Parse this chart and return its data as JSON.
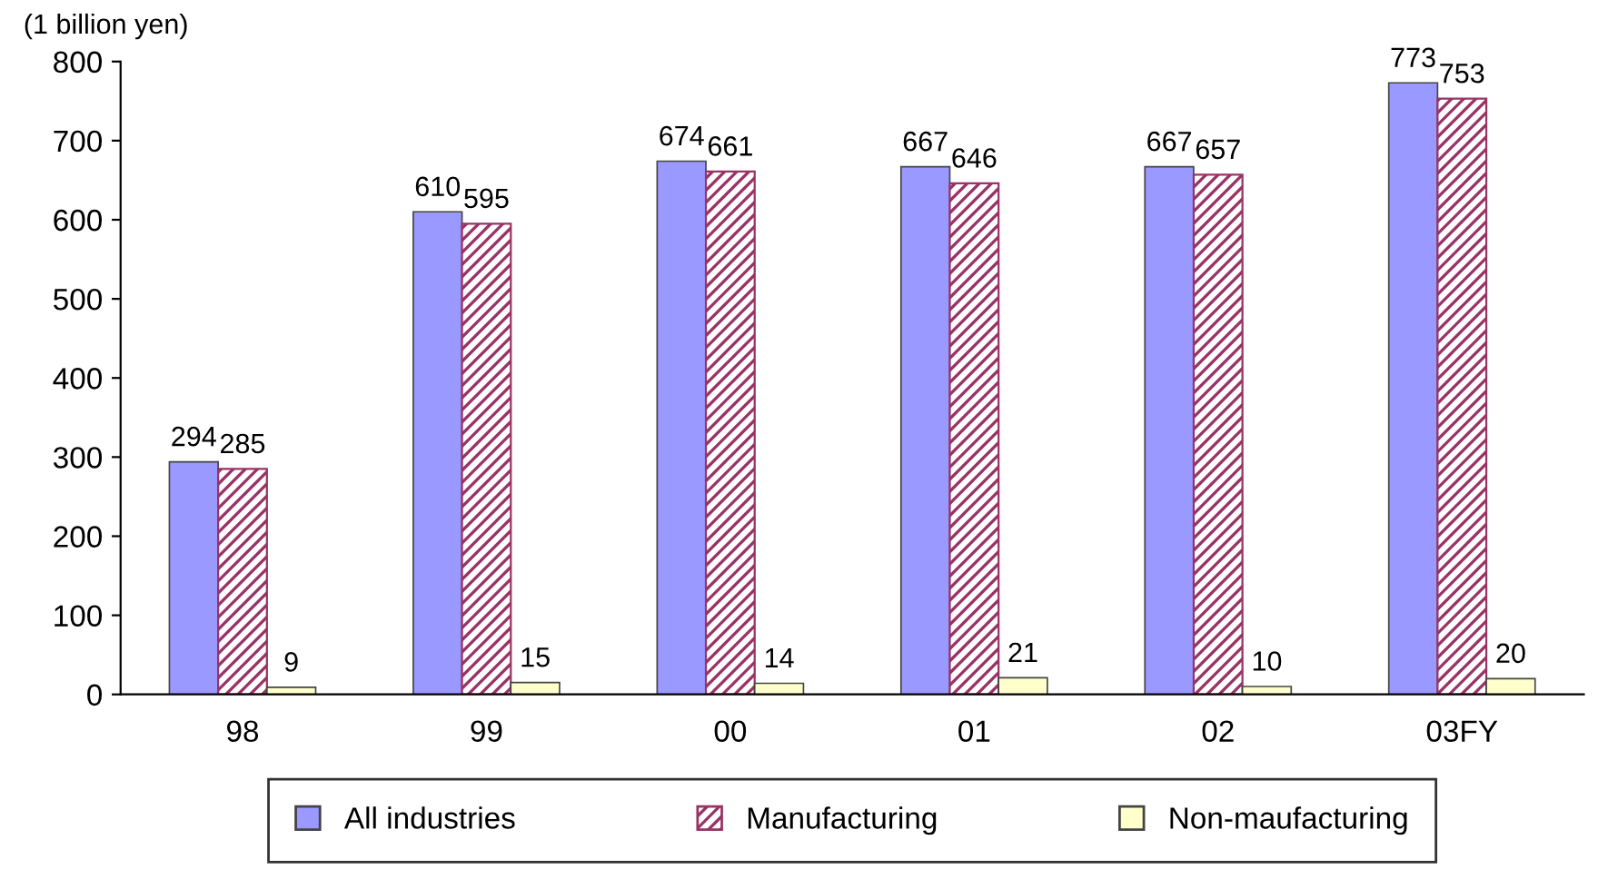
{
  "chart_data": {
    "type": "bar",
    "ylabel": "(1 billion yen)",
    "categories": [
      "98",
      "99",
      "00",
      "01",
      "02",
      "03FY"
    ],
    "series": [
      {
        "name": "All industries",
        "color": "#9999ff",
        "values": [
          294,
          610,
          674,
          667,
          667,
          773
        ]
      },
      {
        "name": "Manufacturing",
        "color": "#993366",
        "values": [
          285,
          595,
          661,
          646,
          657,
          753
        ]
      },
      {
        "name": "Non-maufacturing",
        "color": "#ffffcc",
        "values": [
          9,
          15,
          14,
          21,
          10,
          20
        ]
      }
    ],
    "ylim": [
      0,
      800
    ],
    "yticks": [
      0,
      100,
      200,
      300,
      400,
      500,
      600,
      700,
      800
    ],
    "data_labels": true,
    "grid": false,
    "legend": "bottom"
  }
}
